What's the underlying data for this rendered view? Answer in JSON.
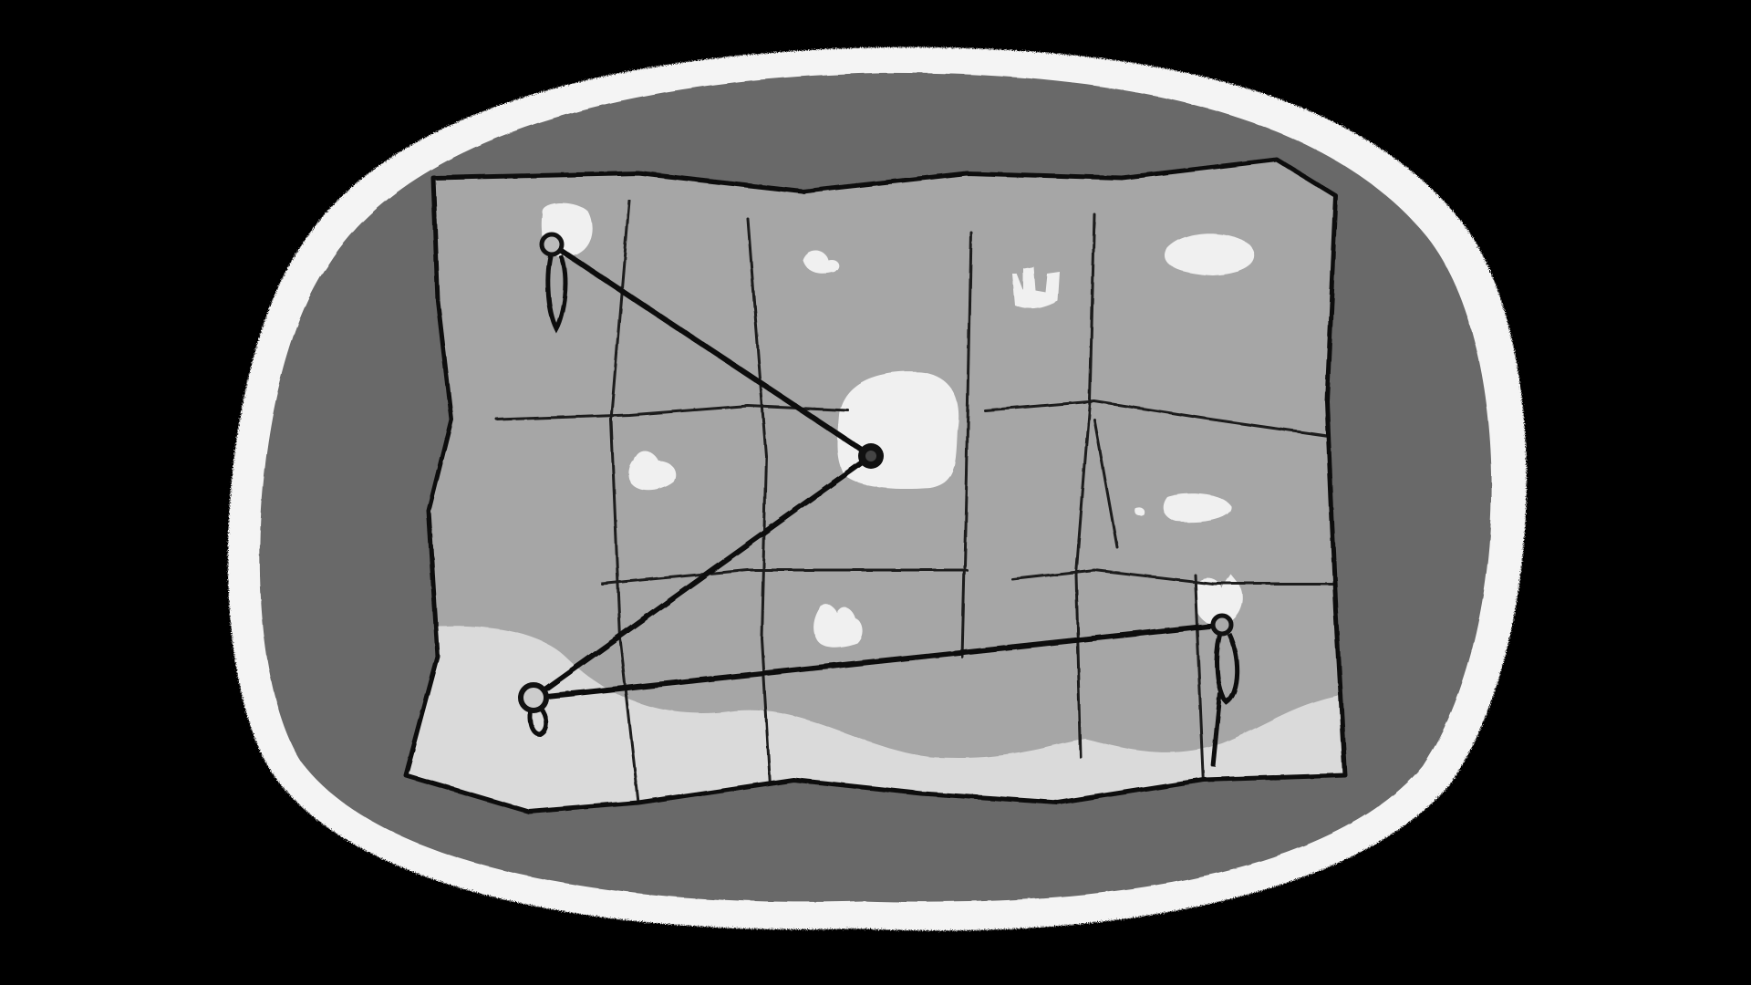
{
  "illustration": {
    "subject": "folded-map-with-string-route",
    "icons": [
      "folded-map-icon",
      "map-pin-icon",
      "route-string-icon"
    ]
  },
  "colors": {
    "background": "#000000",
    "frame_outline": "#f4f4f4",
    "frame_fill": "#696969",
    "map_paper": "#a6a6a6",
    "map_coast": "#dadada",
    "landmark": "#f0f0f0",
    "ink": "#111111"
  },
  "route": {
    "stops": 4,
    "segments": 3
  },
  "map": {
    "panel_columns": 6,
    "panel_rows": 3,
    "landmarks": 10
  }
}
